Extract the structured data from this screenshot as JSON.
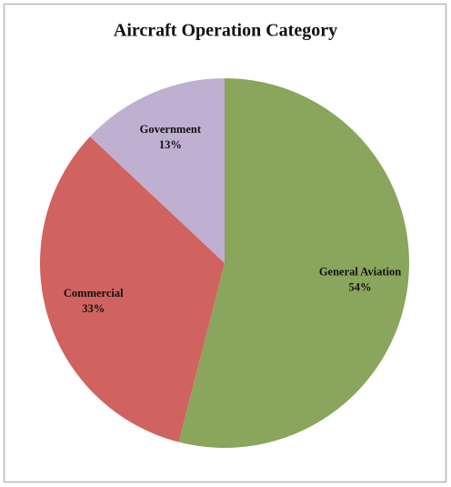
{
  "chart_data": {
    "type": "pie",
    "title": "Aircraft Operation Category",
    "categories": [
      "General Aviation",
      "Commercial",
      "Government"
    ],
    "values": [
      54,
      33,
      13
    ],
    "value_labels": [
      "54%",
      "33%",
      "13%"
    ],
    "colors": [
      "#8aa55c",
      "#d0625f",
      "#bfafd0"
    ]
  }
}
